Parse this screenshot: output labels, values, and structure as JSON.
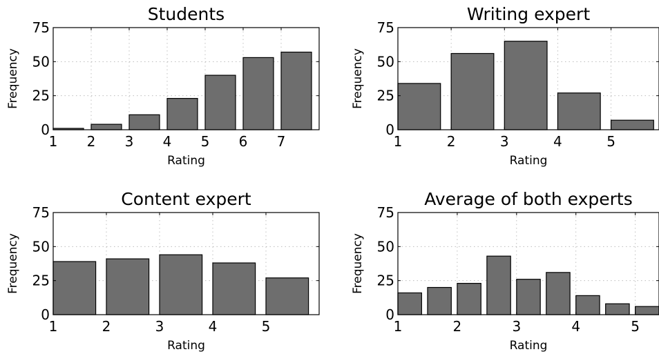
{
  "figure": {
    "bar_color": "#6e6e6e",
    "edge_color": "#000000",
    "grid_color": "#b0b0b0"
  },
  "chart_data": [
    {
      "type": "bar",
      "title": "Students",
      "xlabel": "Rating",
      "ylabel": "Frequency",
      "xlim": [
        1,
        8
      ],
      "ylim": [
        0,
        75
      ],
      "xticks": [
        1,
        2,
        3,
        4,
        5,
        6,
        7
      ],
      "yticks": [
        0,
        25,
        50,
        75
      ],
      "bar_width": 0.8,
      "grid": true,
      "bars": [
        {
          "x": 1,
          "value": 1
        },
        {
          "x": 2,
          "value": 4
        },
        {
          "x": 3,
          "value": 11
        },
        {
          "x": 4,
          "value": 23
        },
        {
          "x": 5,
          "value": 40
        },
        {
          "x": 6,
          "value": 53
        },
        {
          "x": 7,
          "value": 57
        }
      ]
    },
    {
      "type": "bar",
      "title": "Writing expert",
      "xlabel": "Rating",
      "ylabel": "Frequency",
      "xlim": [
        1,
        5.9
      ],
      "ylim": [
        0,
        75
      ],
      "xticks": [
        1,
        2,
        3,
        4,
        5
      ],
      "yticks": [
        0,
        25,
        50,
        75
      ],
      "bar_width": 0.8,
      "grid": true,
      "bars": [
        {
          "x": 1,
          "value": 34
        },
        {
          "x": 2,
          "value": 56
        },
        {
          "x": 3,
          "value": 65
        },
        {
          "x": 4,
          "value": 27
        },
        {
          "x": 5,
          "value": 7
        }
      ]
    },
    {
      "type": "bar",
      "title": "Content expert",
      "xlabel": "Rating",
      "ylabel": "Frequency",
      "xlim": [
        1,
        6
      ],
      "ylim": [
        0,
        75
      ],
      "xticks": [
        1,
        2,
        3,
        4,
        5
      ],
      "yticks": [
        0,
        25,
        50,
        75
      ],
      "bar_width": 0.8,
      "grid": true,
      "bars": [
        {
          "x": 1,
          "value": 39
        },
        {
          "x": 2,
          "value": 41
        },
        {
          "x": 3,
          "value": 44
        },
        {
          "x": 4,
          "value": 38
        },
        {
          "x": 5,
          "value": 27
        }
      ]
    },
    {
      "type": "bar",
      "title": "Average of both experts",
      "xlabel": "Rating",
      "ylabel": "Frequency",
      "xlim": [
        1,
        5.4
      ],
      "ylim": [
        0,
        75
      ],
      "xticks": [
        1,
        2,
        3,
        4,
        5
      ],
      "yticks": [
        0,
        25,
        50,
        75
      ],
      "bar_width": 0.4,
      "grid": true,
      "bars": [
        {
          "x": 1,
          "value": 16
        },
        {
          "x": 1.5,
          "value": 20
        },
        {
          "x": 2,
          "value": 23
        },
        {
          "x": 2.5,
          "value": 43
        },
        {
          "x": 3,
          "value": 26
        },
        {
          "x": 3.5,
          "value": 31
        },
        {
          "x": 4,
          "value": 14
        },
        {
          "x": 4.5,
          "value": 8
        },
        {
          "x": 5,
          "value": 6
        }
      ]
    }
  ]
}
